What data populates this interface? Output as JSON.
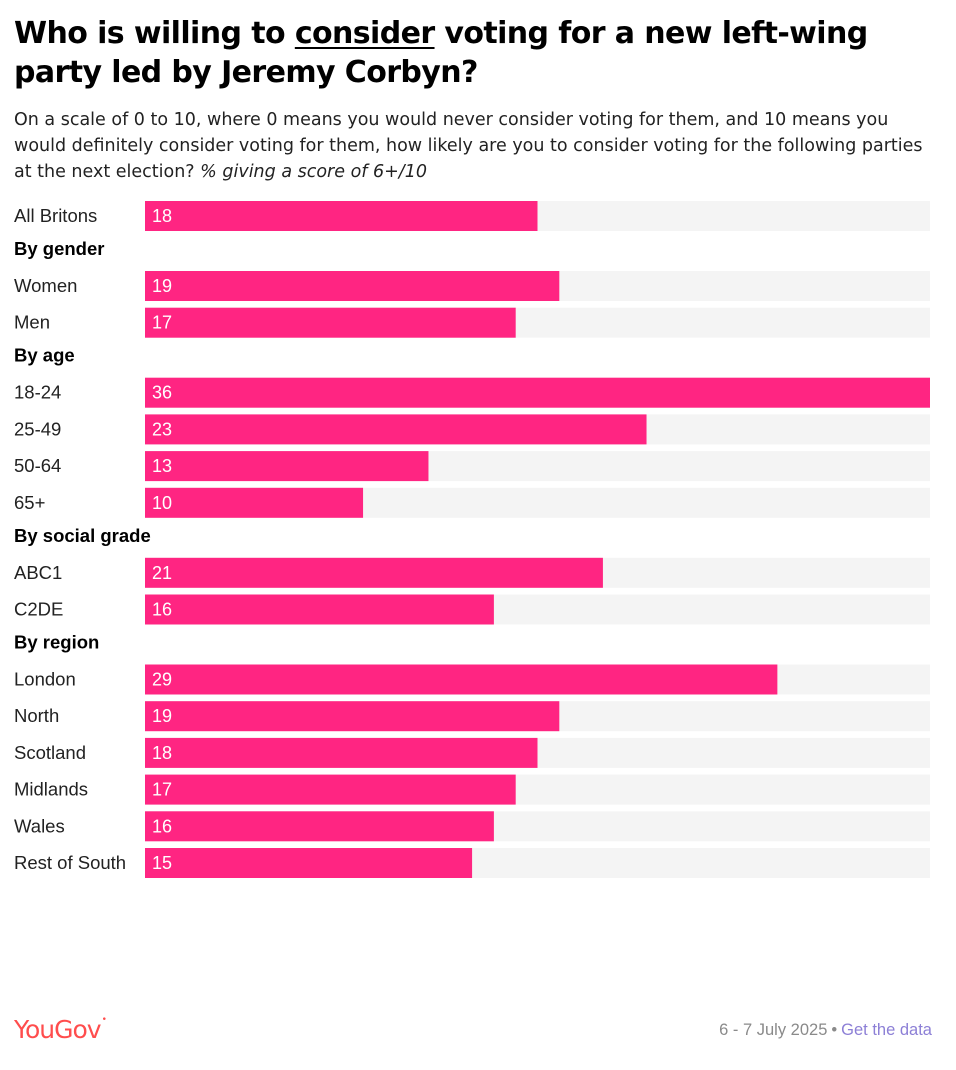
{
  "title": {
    "before": "Who is willing to ",
    "underlined": "consider",
    "after": " voting for a new left-wing party led by Jeremy Corbyn?"
  },
  "subtitle": {
    "text": "On a scale of 0 to 10, where 0 means you would never consider voting for them, and 10 means you would definitely consider voting for them, how likely are you to consider voting for the following parties at the next election?",
    "note": "% giving a score of 6+/10"
  },
  "colors": {
    "bar": "#ff2582",
    "track": "#f4f4f4",
    "brand": "#ff4d4d",
    "link": "#8c7fd6"
  },
  "chart_data": {
    "type": "bar",
    "orientation": "horizontal",
    "xlim": [
      0,
      36
    ],
    "groups": [
      {
        "label": "",
        "categories": [
          "All Britons"
        ],
        "values": [
          18
        ]
      },
      {
        "label": "By gender",
        "categories": [
          "Women",
          "Men"
        ],
        "values": [
          19,
          17
        ]
      },
      {
        "label": "By age",
        "categories": [
          "18-24",
          "25-49",
          "50-64",
          "65+"
        ],
        "values": [
          36,
          23,
          13,
          10
        ]
      },
      {
        "label": "By social grade",
        "categories": [
          "ABC1",
          "C2DE"
        ],
        "values": [
          21,
          16
        ]
      },
      {
        "label": "By region",
        "categories": [
          "London",
          "North",
          "Scotland",
          "Midlands",
          "Wales",
          "Rest of South"
        ],
        "values": [
          29,
          19,
          18,
          17,
          16,
          15
        ]
      }
    ]
  },
  "footer": {
    "logo": "YouGov",
    "date": "6 - 7 July 2025",
    "separator": "•",
    "link": "Get the data"
  }
}
